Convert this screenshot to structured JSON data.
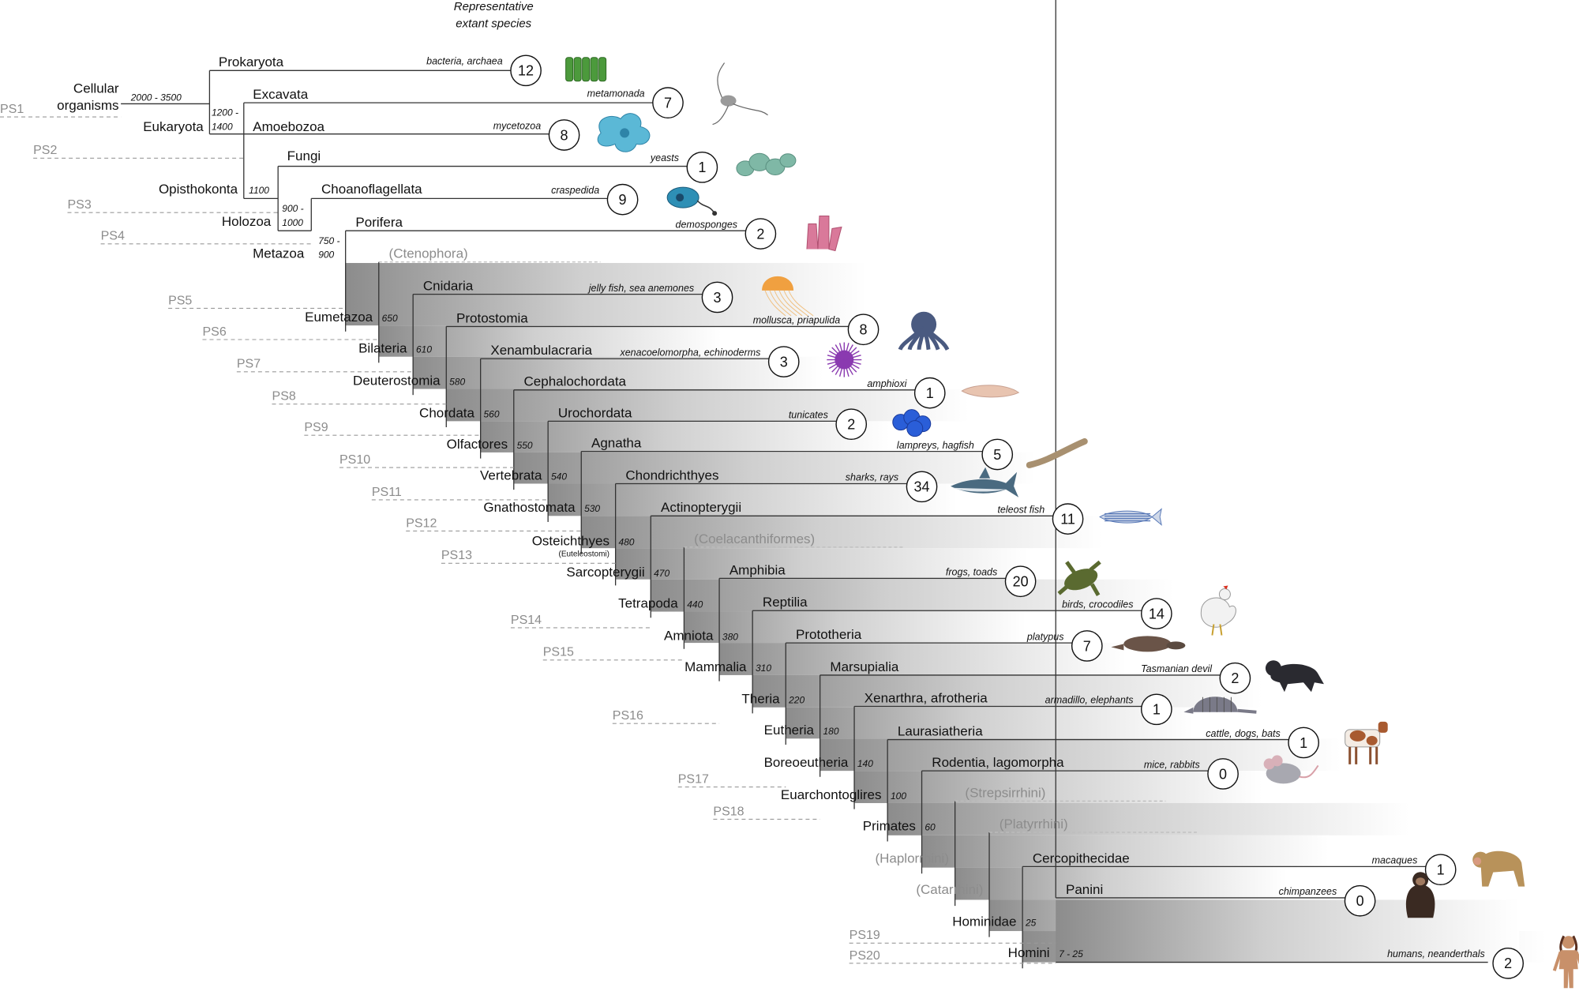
{
  "header": {
    "line1": "Representative",
    "line2": "extant species"
  },
  "phylostrata": [
    "PS1",
    "PS2",
    "PS3",
    "PS4",
    "PS5",
    "PS6",
    "PS7",
    "PS8",
    "PS9",
    "PS10",
    "PS11",
    "PS12",
    "PS13",
    "PS14",
    "PS15",
    "PS16",
    "PS17",
    "PS18",
    "PS19",
    "PS20"
  ],
  "root": {
    "name_line1": "Cellular",
    "name_line2": "organisms",
    "age": "2000 - 3500"
  },
  "eukaryota": {
    "name": "Eukaryota",
    "age_line1": "1200 -",
    "age_line2": "1400"
  },
  "opisthokonta": {
    "name": "Opisthokonta",
    "age": "1100"
  },
  "holozoa": {
    "name": "Holozoa",
    "age_line1": "900 -",
    "age_line2": "1000"
  },
  "metazoa": {
    "name": "Metazoa",
    "age_line1": "750 -",
    "age_line2": "900"
  },
  "osteichthyes_sub": "(Euteleostomi)",
  "nodes": [
    {
      "name": "Eumetazoa",
      "age": "650"
    },
    {
      "name": "Bilateria",
      "age": "610"
    },
    {
      "name": "Deuterostomia",
      "age": "580"
    },
    {
      "name": "Chordata",
      "age": "560"
    },
    {
      "name": "Olfactores",
      "age": "550"
    },
    {
      "name": "Vertebrata",
      "age": "540"
    },
    {
      "name": "Gnathostomata",
      "age": "530"
    },
    {
      "name": "Osteichthyes",
      "age": "480"
    },
    {
      "name": "Sarcopterygii",
      "age": "470"
    },
    {
      "name": "Tetrapoda",
      "age": "440"
    },
    {
      "name": "Amniota",
      "age": "380"
    },
    {
      "name": "Mammalia",
      "age": "310"
    },
    {
      "name": "Theria",
      "age": "220"
    },
    {
      "name": "Eutheria",
      "age": "180"
    },
    {
      "name": "Boreoeutheria",
      "age": "140"
    },
    {
      "name": "Euarchontoglires",
      "age": "100"
    },
    {
      "name": "Primates",
      "age": "60"
    },
    {
      "name": "(Haplorrhini)",
      "age": ""
    },
    {
      "name": "(Catarrhini)",
      "age": ""
    },
    {
      "name": "Hominidae",
      "age": "25"
    },
    {
      "name": "Homini",
      "age": "7 - 25"
    }
  ],
  "leaves": [
    {
      "name": "Prokaryota",
      "example": "bacteria, archaea",
      "count": "12",
      "icon": "bacteria-icon",
      "color": "#4c9a3c"
    },
    {
      "name": "Excavata",
      "example": "metamonada",
      "count": "7",
      "icon": "metamonad-icon",
      "color": "#9a9a9a"
    },
    {
      "name": "Amoebozoa",
      "example": "mycetozoa",
      "count": "8",
      "icon": "amoeba-icon",
      "color": "#5bb8d6"
    },
    {
      "name": "Fungi",
      "example": "yeasts",
      "count": "1",
      "icon": "yeast-icon",
      "color": "#7fb8a6"
    },
    {
      "name": "Choanoflagellata",
      "example": "craspedida",
      "count": "9",
      "icon": "choanoflagellate-icon",
      "color": "#2e8fb5"
    },
    {
      "name": "Porifera",
      "example": "demosponges",
      "count": "2",
      "icon": "sponge-icon",
      "color": "#d9799a"
    },
    {
      "name": "(Ctenophora)",
      "example": "",
      "count": "",
      "icon": "",
      "color": ""
    },
    {
      "name": "Cnidaria",
      "example": "jelly fish, sea anemones",
      "count": "3",
      "icon": "jellyfish-icon",
      "color": "#f0a040"
    },
    {
      "name": "Protostomia",
      "example": "mollusca, priapulida",
      "count": "8",
      "icon": "octopus-icon",
      "color": "#4a5a80"
    },
    {
      "name": "Xenambulacraria",
      "example": "xenacoelomorpha, echinoderms",
      "count": "3",
      "icon": "sea-urchin-icon",
      "color": "#8a3ab0"
    },
    {
      "name": "Cephalochordata",
      "example": "amphioxi",
      "count": "1",
      "icon": "lancelet-icon",
      "color": "#e8c4b0"
    },
    {
      "name": "Urochordata",
      "example": "tunicates",
      "count": "2",
      "icon": "tunicate-icon",
      "color": "#2a5ed8"
    },
    {
      "name": "Agnatha",
      "example": "lampreys, hagfish",
      "count": "5",
      "icon": "lamprey-icon",
      "color": "#a89070"
    },
    {
      "name": "Chondrichthyes",
      "example": "sharks, rays",
      "count": "34",
      "icon": "shark-icon",
      "color": "#4a6a80"
    },
    {
      "name": "Actinopterygii",
      "example": "teleost fish",
      "count": "11",
      "icon": "zebrafish-icon",
      "color": "#5a7ab8"
    },
    {
      "name": "(Coelacanthiformes)",
      "example": "",
      "count": "",
      "icon": "",
      "color": ""
    },
    {
      "name": "Amphibia",
      "example": "frogs, toads",
      "count": "20",
      "icon": "frog-icon",
      "color": "#5a6a30"
    },
    {
      "name": "Reptilia",
      "example": "birds, crocodiles",
      "count": "14",
      "icon": "chicken-icon",
      "color": "#f2f2f2"
    },
    {
      "name": "Prototheria",
      "example": "platypus",
      "count": "7",
      "icon": "platypus-icon",
      "color": "#6a5448"
    },
    {
      "name": "Marsupialia",
      "example": "Tasmanian devil",
      "count": "2",
      "icon": "tasmanian-devil-icon",
      "color": "#2a2a30"
    },
    {
      "name": "Xenarthra, afrotheria",
      "example": "armadillo, elephants",
      "count": "1",
      "icon": "armadillo-icon",
      "color": "#7a7a88"
    },
    {
      "name": "Laurasiatheria",
      "example": "cattle, dogs, bats",
      "count": "1",
      "icon": "cow-icon",
      "color": "#a85a30"
    },
    {
      "name": "Rodentia, lagomorpha",
      "example": "mice, rabbits",
      "count": "0",
      "icon": "mouse-icon",
      "color": "#a8a8b0"
    },
    {
      "name": "(Strepsirrhini)",
      "example": "",
      "count": "",
      "icon": "",
      "color": ""
    },
    {
      "name": "(Platyrrhini)",
      "example": "",
      "count": "",
      "icon": "",
      "color": ""
    },
    {
      "name": "Cercopithecidae",
      "example": "macaques",
      "count": "1",
      "icon": "macaque-icon",
      "color": "#b8925a"
    },
    {
      "name": "Panini",
      "example": "chimpanzees",
      "count": "0",
      "icon": "chimpanzee-icon",
      "color": "#3a2a22"
    },
    {
      "name": "",
      "example": "humans, neanderthals",
      "count": "2",
      "icon": "human-icon",
      "color": "#c8906a"
    }
  ]
}
